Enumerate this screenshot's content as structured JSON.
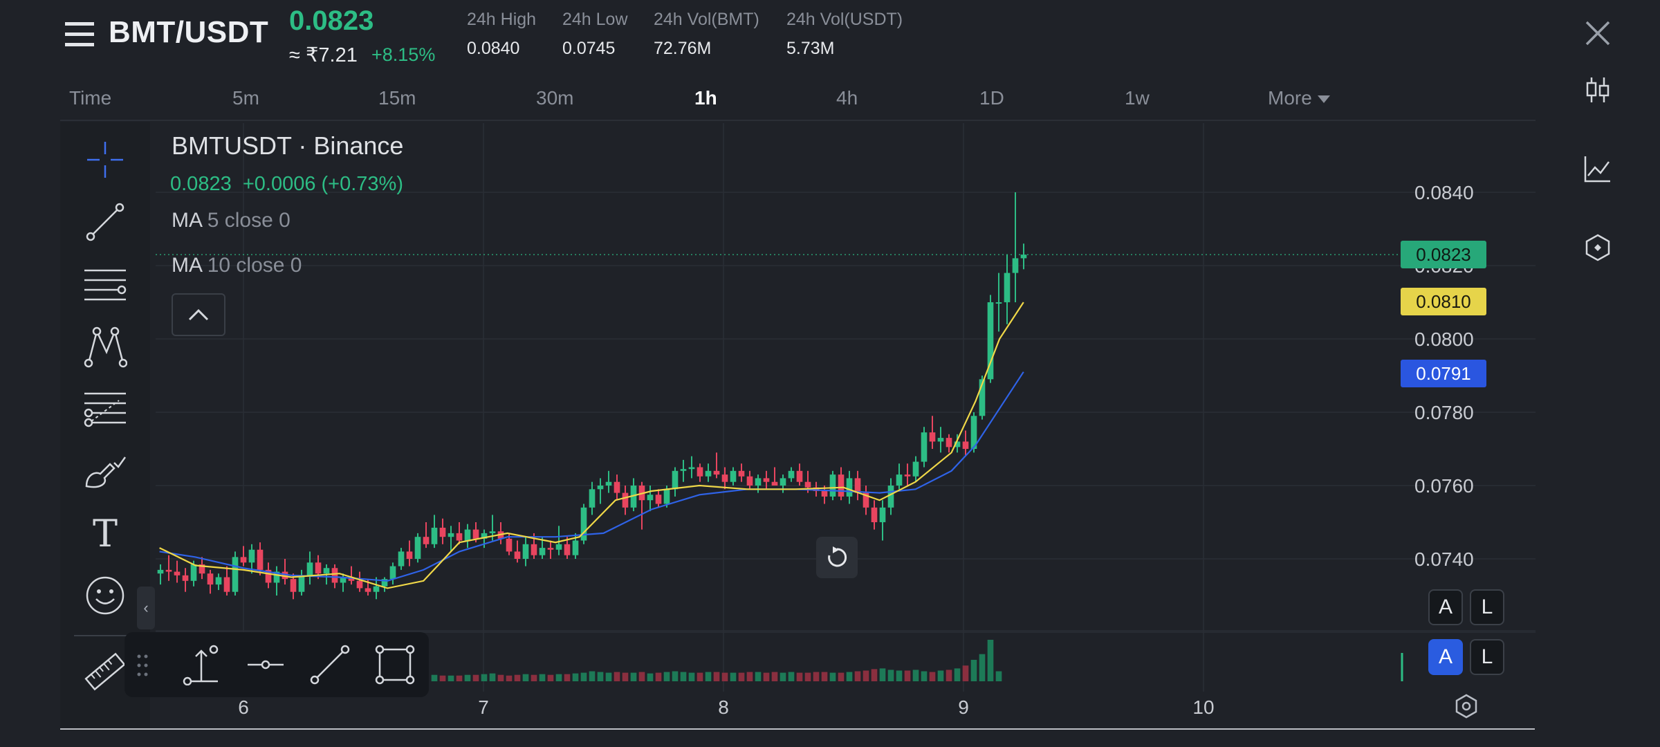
{
  "header": {
    "pair": "BMT/USDT",
    "last_price": "0.0823",
    "fiat_price": "≈ ₹7.21",
    "change_pct": "+8.15%",
    "stats": [
      {
        "label": "24h High",
        "value": "0.0840"
      },
      {
        "label": "24h Low",
        "value": "0.0745"
      },
      {
        "label": "24h Vol(BMT)",
        "value": "72.76M"
      },
      {
        "label": "24h Vol(USDT)",
        "value": "5.73M"
      }
    ]
  },
  "tabs": [
    {
      "label": "Time"
    },
    {
      "label": "5m"
    },
    {
      "label": "15m"
    },
    {
      "label": "30m"
    },
    {
      "label": "1h"
    },
    {
      "label": "4h"
    },
    {
      "label": "1D"
    },
    {
      "label": "1w"
    },
    {
      "label": "More"
    }
  ],
  "active_tab": "1h",
  "legend": {
    "symbol": "BMTUSDT · Binance",
    "last": "0.0823",
    "change": "+0.0006 (+0.73%)",
    "ma5": {
      "name": "MA",
      "params": "5 close 0"
    },
    "ma10": {
      "name": "MA",
      "params": "10 close 0"
    }
  },
  "price_axis": {
    "ticks": [
      "0.0840",
      "0.0820",
      "0.0800",
      "0.0780",
      "0.0760",
      "0.0740"
    ]
  },
  "time_axis": {
    "ticks": [
      "6",
      "7",
      "8",
      "9",
      "10"
    ]
  },
  "price_tags": {
    "last": "0.0823",
    "ma5": "0.0810",
    "ma10": "0.0791"
  },
  "colors": {
    "up": "#2dbd85",
    "down": "#e8455f",
    "ma5": "#f0d848",
    "ma10": "#2f63e8",
    "background": "#1f2228"
  },
  "buttons": {
    "auto": "A",
    "log": "L"
  },
  "text_tool": "T",
  "icons": {
    "menu": "menu-icon",
    "close": "close-icon",
    "candles": "candlestick-icon",
    "indicators": "indicator-chart-icon",
    "settings": "hexagon-settings-icon"
  },
  "chart_data": {
    "type": "candlestick",
    "symbol": "BMTUSDT",
    "interval": "1h",
    "x_tick_labels": [
      "6",
      "7",
      "8",
      "9",
      "10"
    ],
    "ylim": [
      0.0726,
      0.0846
    ],
    "series": [
      {
        "name": "MA",
        "params": "5 close 0",
        "points": [
          [
            5.65,
            0.0743
          ],
          [
            5.8,
            0.07382
          ],
          [
            6.0,
            0.0737
          ],
          [
            6.2,
            0.0735
          ],
          [
            6.4,
            0.0736
          ],
          [
            6.6,
            0.0732
          ],
          [
            6.75,
            0.0734
          ],
          [
            6.9,
            0.07445
          ],
          [
            7.1,
            0.0747
          ],
          [
            7.3,
            0.07445
          ],
          [
            7.4,
            0.0746
          ],
          [
            7.55,
            0.0756
          ],
          [
            7.7,
            0.07585
          ],
          [
            7.9,
            0.076
          ],
          [
            8.1,
            0.0759
          ],
          [
            8.3,
            0.0759
          ],
          [
            8.5,
            0.07595
          ],
          [
            8.65,
            0.0756
          ],
          [
            8.8,
            0.0761
          ],
          [
            8.95,
            0.0769
          ],
          [
            9.05,
            0.0783
          ],
          [
            9.15,
            0.08
          ],
          [
            9.25,
            0.081
          ]
        ]
      },
      {
        "name": "MA",
        "params": "10 close 0",
        "points": [
          [
            5.65,
            0.0742
          ],
          [
            5.8,
            0.07405
          ],
          [
            6.0,
            0.07375
          ],
          [
            6.2,
            0.07355
          ],
          [
            6.4,
            0.0735
          ],
          [
            6.6,
            0.0734
          ],
          [
            6.75,
            0.0737
          ],
          [
            6.9,
            0.0742
          ],
          [
            7.1,
            0.0746
          ],
          [
            7.3,
            0.0746
          ],
          [
            7.5,
            0.0747
          ],
          [
            7.7,
            0.07535
          ],
          [
            7.9,
            0.07575
          ],
          [
            8.1,
            0.0759
          ],
          [
            8.3,
            0.0759
          ],
          [
            8.5,
            0.07585
          ],
          [
            8.65,
            0.0758
          ],
          [
            8.8,
            0.0759
          ],
          [
            8.95,
            0.0764
          ],
          [
            9.05,
            0.0771
          ],
          [
            9.15,
            0.0781
          ],
          [
            9.25,
            0.0791
          ]
        ]
      }
    ],
    "ohlc": [
      [
        0.0736,
        0.07385,
        0.0733,
        0.0737
      ],
      [
        0.0737,
        0.0741,
        0.0734,
        0.07365
      ],
      [
        0.07365,
        0.07395,
        0.07335,
        0.07355
      ],
      [
        0.07355,
        0.07375,
        0.0731,
        0.0734
      ],
      [
        0.0734,
        0.07395,
        0.07325,
        0.07385
      ],
      [
        0.07385,
        0.07405,
        0.07345,
        0.0736
      ],
      [
        0.0736,
        0.0737,
        0.07305,
        0.0733
      ],
      [
        0.0733,
        0.0736,
        0.07315,
        0.0735
      ],
      [
        0.0735,
        0.0738,
        0.073,
        0.0731
      ],
      [
        0.0731,
        0.0742,
        0.073,
        0.07405
      ],
      [
        0.07405,
        0.07435,
        0.0738,
        0.0739
      ],
      [
        0.0739,
        0.0744,
        0.0736,
        0.07425
      ],
      [
        0.07425,
        0.07445,
        0.07355,
        0.0737
      ],
      [
        0.0737,
        0.0739,
        0.0732,
        0.07335
      ],
      [
        0.07335,
        0.0738,
        0.073,
        0.07365
      ],
      [
        0.07365,
        0.074,
        0.0733,
        0.07345
      ],
      [
        0.07345,
        0.0736,
        0.0729,
        0.0731
      ],
      [
        0.0731,
        0.0737,
        0.073,
        0.07355
      ],
      [
        0.07355,
        0.0742,
        0.0733,
        0.0739
      ],
      [
        0.0739,
        0.0741,
        0.07345,
        0.0736
      ],
      [
        0.0736,
        0.07385,
        0.0733,
        0.07375
      ],
      [
        0.07375,
        0.07385,
        0.0732,
        0.07335
      ],
      [
        0.07335,
        0.0736,
        0.0731,
        0.0735
      ],
      [
        0.0735,
        0.0738,
        0.0733,
        0.0734
      ],
      [
        0.0734,
        0.07365,
        0.0731,
        0.0732
      ],
      [
        0.0732,
        0.07345,
        0.073,
        0.0731
      ],
      [
        0.0731,
        0.0735,
        0.0729,
        0.07325
      ],
      [
        0.07325,
        0.0735,
        0.0731,
        0.07345
      ],
      [
        0.07345,
        0.0739,
        0.0733,
        0.0738
      ],
      [
        0.0738,
        0.0743,
        0.0737,
        0.0742
      ],
      [
        0.0742,
        0.0745,
        0.0738,
        0.074
      ],
      [
        0.074,
        0.0747,
        0.0739,
        0.0746
      ],
      [
        0.0746,
        0.075,
        0.0743,
        0.0744
      ],
      [
        0.0744,
        0.0752,
        0.0743,
        0.07485
      ],
      [
        0.07485,
        0.0751,
        0.0744,
        0.0746
      ],
      [
        0.0746,
        0.0749,
        0.0742,
        0.0747
      ],
      [
        0.0747,
        0.075,
        0.0744,
        0.0745
      ],
      [
        0.0745,
        0.07495,
        0.0743,
        0.0748
      ],
      [
        0.0748,
        0.075,
        0.07445,
        0.07455
      ],
      [
        0.07455,
        0.0748,
        0.0743,
        0.0747
      ],
      [
        0.0747,
        0.0752,
        0.0745,
        0.07475
      ],
      [
        0.07475,
        0.075,
        0.0744,
        0.07455
      ],
      [
        0.07455,
        0.0747,
        0.0741,
        0.0742
      ],
      [
        0.0742,
        0.0745,
        0.0739,
        0.074
      ],
      [
        0.074,
        0.0746,
        0.0738,
        0.0744
      ],
      [
        0.0744,
        0.0747,
        0.074,
        0.0741
      ],
      [
        0.0741,
        0.0746,
        0.074,
        0.0743
      ],
      [
        0.0743,
        0.0745,
        0.074,
        0.07425
      ],
      [
        0.07425,
        0.0749,
        0.0741,
        0.0744
      ],
      [
        0.0744,
        0.0746,
        0.074,
        0.0741
      ],
      [
        0.0741,
        0.0747,
        0.074,
        0.0745
      ],
      [
        0.0745,
        0.0755,
        0.0744,
        0.0754
      ],
      [
        0.0754,
        0.0761,
        0.0752,
        0.0759
      ],
      [
        0.0759,
        0.0762,
        0.0755,
        0.076
      ],
      [
        0.076,
        0.0764,
        0.0758,
        0.0761
      ],
      [
        0.0761,
        0.0763,
        0.0756,
        0.0758
      ],
      [
        0.0758,
        0.076,
        0.0752,
        0.0754
      ],
      [
        0.0754,
        0.0762,
        0.0753,
        0.076
      ],
      [
        0.076,
        0.0761,
        0.0748,
        0.0756
      ],
      [
        0.0756,
        0.076,
        0.0753,
        0.07575
      ],
      [
        0.07575,
        0.0759,
        0.0754,
        0.0755
      ],
      [
        0.0755,
        0.076,
        0.0754,
        0.0759
      ],
      [
        0.0759,
        0.0765,
        0.0757,
        0.0764
      ],
      [
        0.0764,
        0.0767,
        0.0761,
        0.07645
      ],
      [
        0.07645,
        0.0768,
        0.0762,
        0.0765
      ],
      [
        0.0765,
        0.0766,
        0.0761,
        0.07625
      ],
      [
        0.07625,
        0.0766,
        0.0761,
        0.0764
      ],
      [
        0.0764,
        0.0769,
        0.0762,
        0.0763
      ],
      [
        0.0763,
        0.0765,
        0.0759,
        0.0761
      ],
      [
        0.0761,
        0.0765,
        0.076,
        0.0764
      ],
      [
        0.0764,
        0.0766,
        0.0761,
        0.07625
      ],
      [
        0.07625,
        0.0764,
        0.0759,
        0.076
      ],
      [
        0.076,
        0.0763,
        0.0758,
        0.0762
      ],
      [
        0.0762,
        0.0764,
        0.0759,
        0.0761
      ],
      [
        0.0761,
        0.0765,
        0.076,
        0.076
      ],
      [
        0.076,
        0.0763,
        0.0758,
        0.0762
      ],
      [
        0.0762,
        0.0765,
        0.0761,
        0.0764
      ],
      [
        0.0764,
        0.0766,
        0.076,
        0.0761
      ],
      [
        0.0761,
        0.0764,
        0.0758,
        0.07595
      ],
      [
        0.07595,
        0.0761,
        0.0757,
        0.07585
      ],
      [
        0.07585,
        0.076,
        0.0755,
        0.0757
      ],
      [
        0.0757,
        0.0764,
        0.0756,
        0.0763
      ],
      [
        0.0763,
        0.0765,
        0.0756,
        0.0757
      ],
      [
        0.0757,
        0.0764,
        0.0755,
        0.0762
      ],
      [
        0.0762,
        0.0764,
        0.0756,
        0.0758
      ],
      [
        0.0758,
        0.076,
        0.0752,
        0.0754
      ],
      [
        0.0754,
        0.0756,
        0.0748,
        0.075
      ],
      [
        0.075,
        0.0756,
        0.0745,
        0.0754
      ],
      [
        0.0754,
        0.0762,
        0.0752,
        0.076
      ],
      [
        0.076,
        0.0766,
        0.0759,
        0.0763
      ],
      [
        0.0763,
        0.0766,
        0.076,
        0.07625
      ],
      [
        0.07625,
        0.0768,
        0.0761,
        0.07665
      ],
      [
        0.07665,
        0.0776,
        0.0765,
        0.07745
      ],
      [
        0.07745,
        0.0779,
        0.077,
        0.0772
      ],
      [
        0.0772,
        0.0776,
        0.0769,
        0.0773
      ],
      [
        0.0773,
        0.0774,
        0.0769,
        0.07705
      ],
      [
        0.07705,
        0.0774,
        0.0769,
        0.0772
      ],
      [
        0.0772,
        0.0775,
        0.0768,
        0.077
      ],
      [
        0.077,
        0.078,
        0.0769,
        0.0779
      ],
      [
        0.0779,
        0.079,
        0.0778,
        0.0789
      ],
      [
        0.0789,
        0.0812,
        0.0788,
        0.081
      ],
      [
        0.081,
        0.0818,
        0.0802,
        0.081
      ],
      [
        0.081,
        0.0823,
        0.0804,
        0.0818
      ],
      [
        0.0818,
        0.084,
        0.081,
        0.0822
      ],
      [
        0.0822,
        0.0826,
        0.0819,
        0.0823
      ]
    ],
    "volume_profile": [
      6,
      6,
      7,
      6,
      7,
      6,
      5,
      6,
      7,
      8,
      7,
      8,
      7,
      6,
      7,
      6,
      6,
      7,
      8,
      7,
      7,
      6,
      6,
      7,
      6,
      6,
      7,
      7,
      8,
      9,
      8,
      9,
      10,
      9,
      8,
      8,
      8,
      9,
      9,
      10,
      11,
      9,
      8,
      9,
      10,
      9,
      10,
      9,
      10,
      10,
      11,
      12,
      14,
      13,
      12,
      13,
      12,
      12,
      13,
      11,
      12,
      13,
      14,
      13,
      12,
      12,
      13,
      13,
      12,
      12,
      12,
      13,
      13,
      12,
      13,
      12,
      13,
      12,
      12,
      13,
      13,
      12,
      12,
      13,
      14,
      15,
      17,
      18,
      16,
      15,
      15,
      16,
      14,
      13,
      15,
      16,
      18,
      22,
      30,
      38,
      58,
      14
    ]
  }
}
